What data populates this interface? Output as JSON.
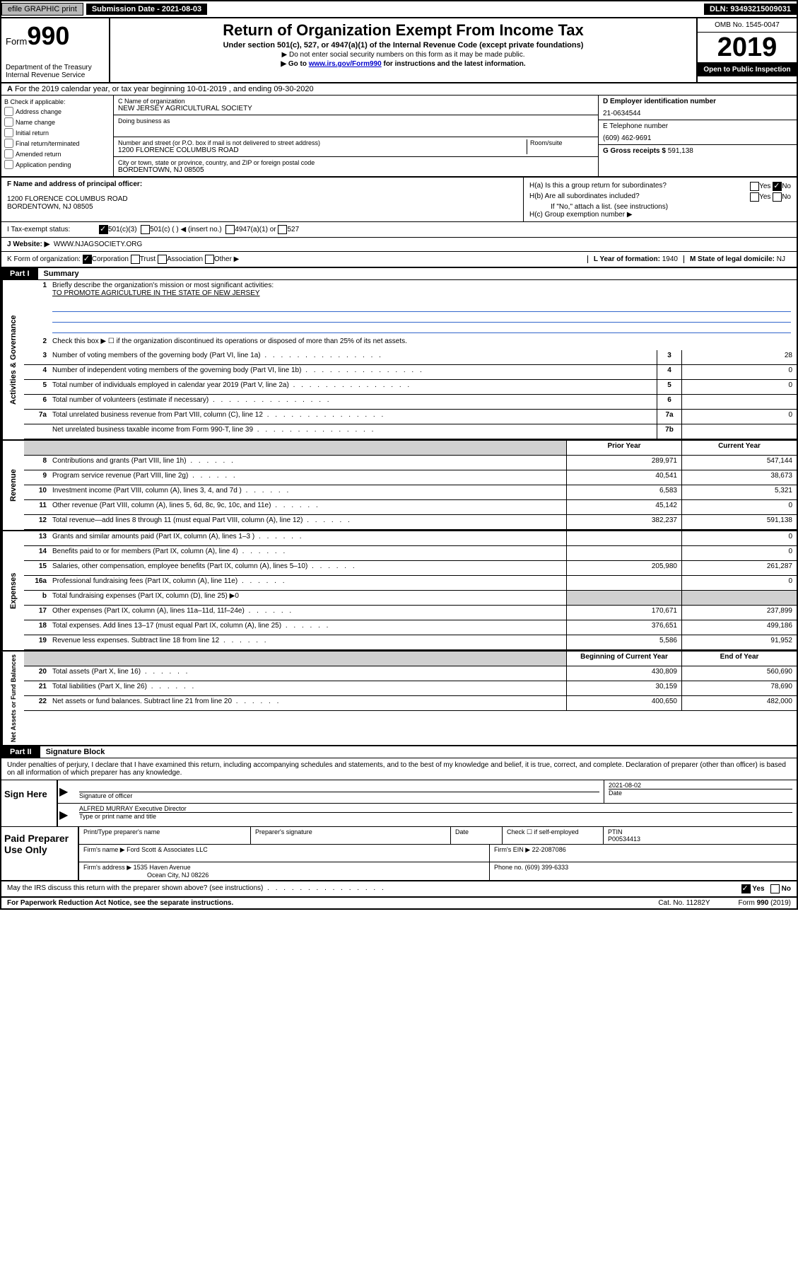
{
  "top_bar": {
    "efile": "efile GRAPHIC print",
    "sub_date": "Submission Date - 2021-08-03",
    "dln": "DLN: 93493215009031"
  },
  "header": {
    "form_word": "Form",
    "form_num": "990",
    "dept1": "Department of the Treasury",
    "dept2": "Internal Revenue Service",
    "title": "Return of Organization Exempt From Income Tax",
    "subtitle": "Under section 501(c), 527, or 4947(a)(1) of the Internal Revenue Code (except private foundations)",
    "instr1": "▶ Do not enter social security numbers on this form as it may be made public.",
    "instr2_pre": "▶ Go to ",
    "instr2_link": "www.irs.gov/Form990",
    "instr2_post": " for instructions and the latest information.",
    "omb": "OMB No. 1545-0047",
    "year": "2019",
    "open": "Open to Public Inspection"
  },
  "row_a": {
    "label": "A",
    "text": "For the 2019 calendar year, or tax year beginning 10-01-2019   , and ending 09-30-2020"
  },
  "col_b": {
    "label": "B Check if applicable:",
    "items": [
      "Address change",
      "Name change",
      "Initial return",
      "Final return/terminated",
      "Amended return",
      "Application pending"
    ]
  },
  "col_c": {
    "name_label": "C Name of organization",
    "name": "NEW JERSEY AGRICULTURAL SOCIETY",
    "dba_label": "Doing business as",
    "addr_label": "Number and street (or P.O. box if mail is not delivered to street address)",
    "room_label": "Room/suite",
    "addr": "1200 FLORENCE COLUMBUS ROAD",
    "city_label": "City or town, state or province, country, and ZIP or foreign postal code",
    "city": "BORDENTOWN, NJ  08505"
  },
  "col_right": {
    "d_label": "D Employer identification number",
    "ein": "21-0634544",
    "e_label": "E Telephone number",
    "phone": "(609) 462-9691",
    "g_label": "G Gross receipts $ ",
    "gross": "591,138"
  },
  "sec_f": {
    "label": "F Name and address of principal officer:",
    "addr1": "1200 FLORENCE COLUMBUS ROAD",
    "addr2": "BORDENTOWN, NJ  08505"
  },
  "sec_h": {
    "ha": "H(a)  Is this a group return for subordinates?",
    "hb": "H(b)  Are all subordinates included?",
    "hb_note": "If \"No,\" attach a list. (see instructions)",
    "hc": "H(c)  Group exemption number ▶",
    "yes": "Yes",
    "no": "No"
  },
  "row_i": {
    "label": "I     Tax-exempt status:",
    "opts": [
      "501(c)(3)",
      "501(c) (   ) ◀ (insert no.)",
      "4947(a)(1) or",
      "527"
    ]
  },
  "row_j": {
    "label": "J    Website: ▶",
    "val": "WWW.NJAGSOCIETY.ORG"
  },
  "row_k": {
    "label": "K Form of organization:",
    "opts": [
      "Corporation",
      "Trust",
      "Association",
      "Other ▶"
    ],
    "l_label": "L Year of formation: ",
    "l_val": "1940",
    "m_label": "M State of legal domicile: ",
    "m_val": "NJ"
  },
  "part1": {
    "label": "Part I",
    "title": "Summary",
    "line1_label": "Briefly describe the organization's mission or most significant activities:",
    "mission": "TO PROMOTE AGRICULTURE IN THE STATE OF NEW JERSEY",
    "line2": "Check this box ▶ ☐  if the organization discontinued its operations or disposed of more than 25% of its net assets.",
    "sections": {
      "gov": "Activities & Governance",
      "rev": "Revenue",
      "exp": "Expenses",
      "net": "Net Assets or Fund Balances"
    },
    "prior_label": "Prior Year",
    "current_label": "Current Year",
    "beg_label": "Beginning of Current Year",
    "end_label": "End of Year",
    "rows_gov": [
      {
        "n": "3",
        "label": "Number of voting members of the governing body (Part VI, line 1a)",
        "col": "3",
        "val": "28"
      },
      {
        "n": "4",
        "label": "Number of independent voting members of the governing body (Part VI, line 1b)",
        "col": "4",
        "val": "0"
      },
      {
        "n": "5",
        "label": "Total number of individuals employed in calendar year 2019 (Part V, line 2a)",
        "col": "5",
        "val": "0"
      },
      {
        "n": "6",
        "label": "Total number of volunteers (estimate if necessary)",
        "col": "6",
        "val": ""
      },
      {
        "n": "7a",
        "label": "Total unrelated business revenue from Part VIII, column (C), line 12",
        "col": "7a",
        "val": "0"
      },
      {
        "n": "",
        "label": "Net unrelated business taxable income from Form 990-T, line 39",
        "col": "7b",
        "val": ""
      }
    ],
    "rows_rev": [
      {
        "n": "8",
        "label": "Contributions and grants (Part VIII, line 1h)",
        "prior": "289,971",
        "curr": "547,144"
      },
      {
        "n": "9",
        "label": "Program service revenue (Part VIII, line 2g)",
        "prior": "40,541",
        "curr": "38,673"
      },
      {
        "n": "10",
        "label": "Investment income (Part VIII, column (A), lines 3, 4, and 7d )",
        "prior": "6,583",
        "curr": "5,321"
      },
      {
        "n": "11",
        "label": "Other revenue (Part VIII, column (A), lines 5, 6d, 8c, 9c, 10c, and 11e)",
        "prior": "45,142",
        "curr": "0"
      },
      {
        "n": "12",
        "label": "Total revenue—add lines 8 through 11 (must equal Part VIII, column (A), line 12)",
        "prior": "382,237",
        "curr": "591,138"
      }
    ],
    "rows_exp": [
      {
        "n": "13",
        "label": "Grants and similar amounts paid (Part IX, column (A), lines 1–3 )",
        "prior": "",
        "curr": "0"
      },
      {
        "n": "14",
        "label": "Benefits paid to or for members (Part IX, column (A), line 4)",
        "prior": "",
        "curr": "0"
      },
      {
        "n": "15",
        "label": "Salaries, other compensation, employee benefits (Part IX, column (A), lines 5–10)",
        "prior": "205,980",
        "curr": "261,287"
      },
      {
        "n": "16a",
        "label": "Professional fundraising fees (Part IX, column (A), line 11e)",
        "prior": "",
        "curr": "0"
      },
      {
        "n": "b",
        "label": "Total fundraising expenses (Part IX, column (D), line 25) ▶0",
        "gray": true
      },
      {
        "n": "17",
        "label": "Other expenses (Part IX, column (A), lines 11a–11d, 11f–24e)",
        "prior": "170,671",
        "curr": "237,899"
      },
      {
        "n": "18",
        "label": "Total expenses. Add lines 13–17 (must equal Part IX, column (A), line 25)",
        "prior": "376,651",
        "curr": "499,186"
      },
      {
        "n": "19",
        "label": "Revenue less expenses. Subtract line 18 from line 12",
        "prior": "5,586",
        "curr": "91,952"
      }
    ],
    "rows_net": [
      {
        "n": "20",
        "label": "Total assets (Part X, line 16)",
        "prior": "430,809",
        "curr": "560,690"
      },
      {
        "n": "21",
        "label": "Total liabilities (Part X, line 26)",
        "prior": "30,159",
        "curr": "78,690"
      },
      {
        "n": "22",
        "label": "Net assets or fund balances. Subtract line 21 from line 20",
        "prior": "400,650",
        "curr": "482,000"
      }
    ]
  },
  "part2": {
    "label": "Part II",
    "title": "Signature Block",
    "perjury": "Under penalties of perjury, I declare that I have examined this return, including accompanying schedules and statements, and to the best of my knowledge and belief, it is true, correct, and complete. Declaration of preparer (other than officer) is based on all information of which preparer has any knowledge.",
    "sign_here": "Sign Here",
    "sig_officer": "Signature of officer",
    "sig_date": "2021-08-02",
    "date_label": "Date",
    "officer_name": "ALFRED MURRAY Executive Director",
    "type_name": "Type or print name and title",
    "paid": "Paid Preparer Use Only",
    "prep_name_label": "Print/Type preparer's name",
    "prep_sig_label": "Preparer's signature",
    "check_if": "Check ☐ if self-employed",
    "ptin_label": "PTIN",
    "ptin": "P00534413",
    "firm_name_label": "Firm's name    ▶",
    "firm_name": "Ford Scott & Associates LLC",
    "firm_ein_label": "Firm's EIN ▶",
    "firm_ein": "22-2087086",
    "firm_addr_label": "Firm's address ▶",
    "firm_addr1": "1535 Haven Avenue",
    "firm_addr2": "Ocean City, NJ  08226",
    "firm_phone_label": "Phone no.",
    "firm_phone": "(609) 399-6333",
    "discuss": "May the IRS discuss this return with the preparer shown above? (see instructions)",
    "footer_left": "For Paperwork Reduction Act Notice, see the separate instructions.",
    "footer_cat": "Cat. No. 11282Y",
    "footer_form": "Form 990 (2019)"
  }
}
